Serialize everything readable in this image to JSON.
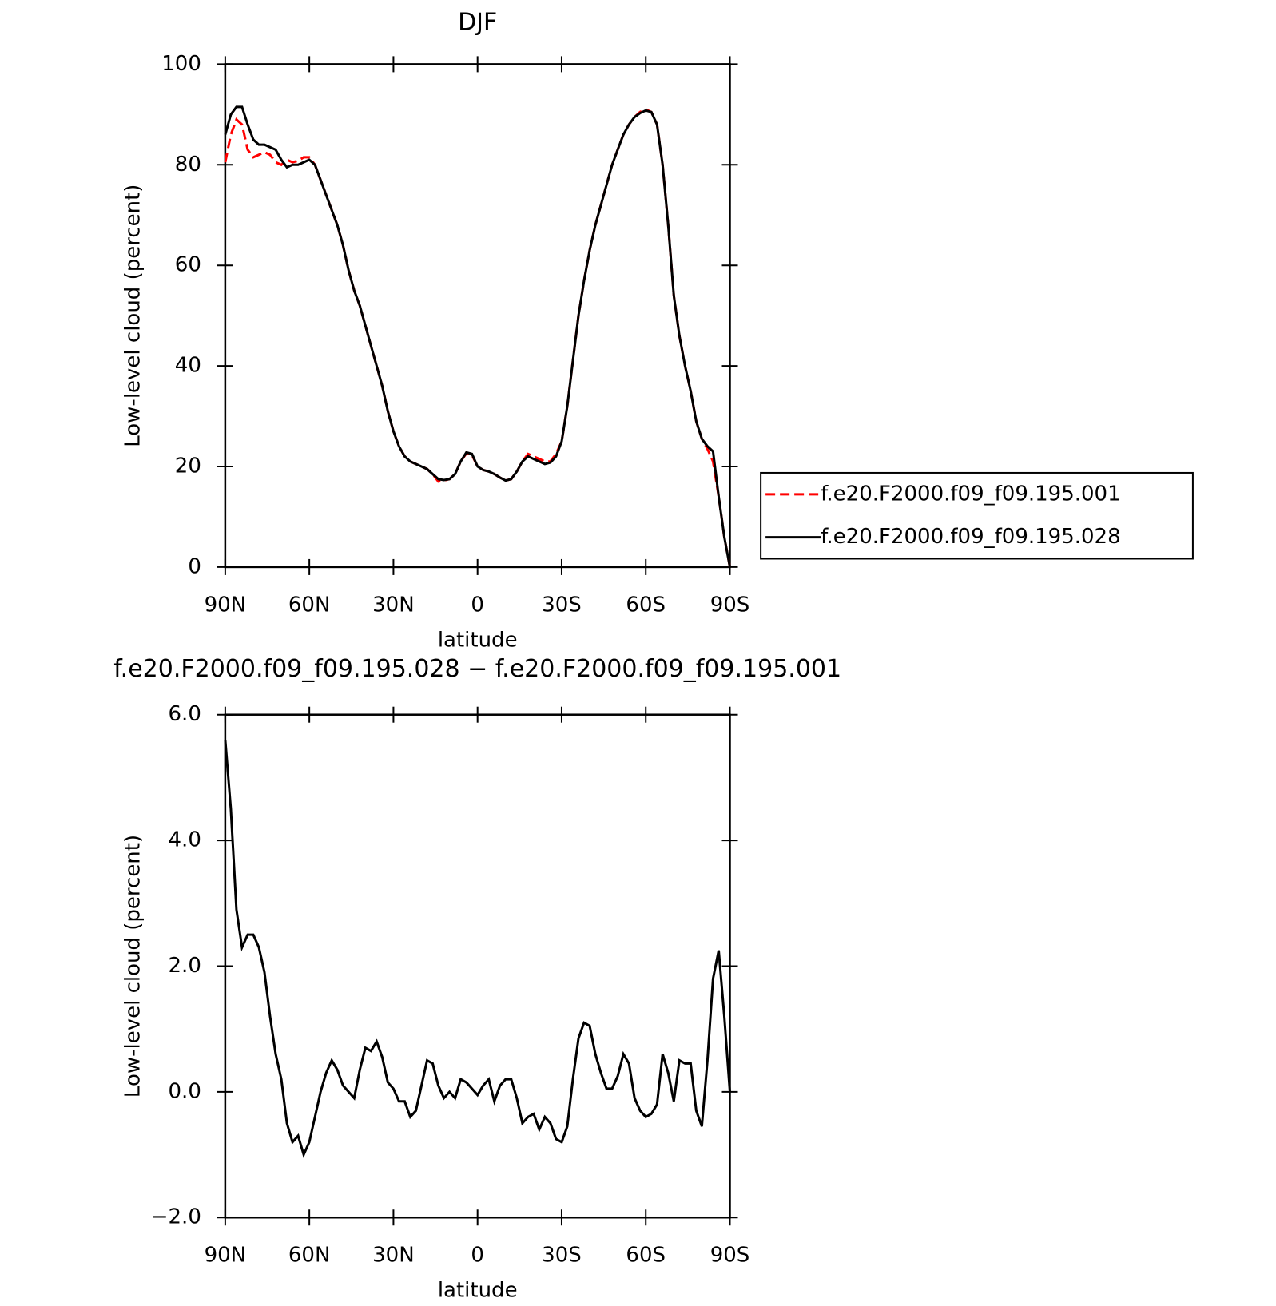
{
  "chart_data": [
    {
      "type": "line",
      "title": "DJF",
      "x_label": "latitude",
      "y_label": "Low-level cloud (percent)",
      "x": [
        90,
        88,
        86,
        84,
        82,
        80,
        78,
        76,
        74,
        72,
        70,
        68,
        66,
        64,
        62,
        60,
        58,
        56,
        54,
        52,
        50,
        48,
        46,
        44,
        42,
        40,
        38,
        36,
        34,
        32,
        30,
        28,
        26,
        24,
        22,
        20,
        18,
        16,
        14,
        12,
        10,
        8,
        6,
        4,
        2,
        0,
        -2,
        -4,
        -6,
        -8,
        -10,
        -12,
        -14,
        -16,
        -18,
        -20,
        -22,
        -24,
        -26,
        -28,
        -30,
        -32,
        -34,
        -36,
        -38,
        -40,
        -42,
        -44,
        -46,
        -48,
        -50,
        -52,
        -54,
        -56,
        -58,
        -60,
        -62,
        -64,
        -66,
        -68,
        -70,
        -72,
        -74,
        -76,
        -78,
        -80,
        -82,
        -84,
        -86,
        -88,
        -90
      ],
      "series": [
        {
          "name": "f.e20.F2000.f09_f09.195.001",
          "color": "#ff0000",
          "linestyle": "dashed",
          "values": [
            80.5,
            86,
            89,
            88,
            83,
            81.5,
            82,
            82.5,
            82,
            80.5,
            80,
            81,
            80.5,
            80.8,
            81.5,
            81.5,
            80,
            77,
            74,
            71,
            68,
            64,
            59,
            55,
            52,
            48,
            44,
            40,
            36,
            31,
            27,
            24,
            22,
            21,
            20.5,
            20,
            19.5,
            18.5,
            17,
            17.2,
            17.5,
            18.5,
            21,
            22.6,
            22.3,
            20,
            19.3,
            19,
            18.5,
            17.8,
            17.2,
            17.5,
            19,
            21,
            22.5,
            22,
            21.5,
            21,
            21,
            22.5,
            25,
            32,
            41,
            50,
            57,
            63,
            68,
            72,
            76,
            80,
            83,
            86,
            88,
            89.5,
            90.5,
            91,
            90.5,
            88,
            80,
            68,
            54,
            46,
            40,
            35,
            29,
            25.5,
            23.5,
            21,
            14,
            6,
            0
          ]
        },
        {
          "name": "f.e20.F2000.f09_f09.195.028",
          "color": "#000000",
          "linestyle": "solid",
          "values": [
            86,
            90,
            91.5,
            91.5,
            88,
            85,
            84,
            84,
            83.5,
            83,
            81,
            79.5,
            80,
            80,
            80.5,
            81,
            80,
            77,
            74,
            71,
            68,
            64,
            59,
            55,
            52,
            48,
            44,
            40,
            36,
            31,
            27,
            24,
            22,
            21,
            20.5,
            20,
            19.5,
            18.5,
            17.5,
            17.3,
            17.5,
            18.5,
            21,
            22.8,
            22.5,
            20,
            19.3,
            19,
            18.5,
            17.8,
            17.2,
            17.5,
            19,
            21,
            22,
            21.5,
            21,
            20.5,
            20.8,
            22,
            25,
            32,
            41,
            50,
            57,
            63,
            68,
            72,
            76,
            80,
            83,
            86,
            88,
            89.5,
            90.3,
            90.8,
            90.5,
            88,
            80,
            68,
            54,
            46,
            40,
            35,
            29,
            25.5,
            24,
            23,
            14,
            6,
            0
          ]
        }
      ],
      "xlim": [
        90,
        -90
      ],
      "xticks": [
        {
          "value": 90,
          "label": "90N"
        },
        {
          "value": 60,
          "label": "60N"
        },
        {
          "value": 30,
          "label": "30N"
        },
        0,
        {
          "value": -30,
          "label": "30S"
        },
        {
          "value": -60,
          "label": "60S"
        },
        {
          "value": -90,
          "label": "90S"
        }
      ],
      "ylim": [
        0,
        100
      ],
      "yticks": [
        0,
        20,
        40,
        60,
        80,
        100
      ],
      "legend": "right"
    },
    {
      "type": "line",
      "title": "f.e20.F2000.f09_f09.195.028 − f.e20.F2000.f09_f09.195.001",
      "x_label": "latitude",
      "y_label": "Low-level cloud (percent)",
      "x": [
        90,
        88,
        86,
        84,
        82,
        80,
        78,
        76,
        74,
        72,
        70,
        68,
        66,
        64,
        62,
        60,
        58,
        56,
        54,
        52,
        50,
        48,
        46,
        44,
        42,
        40,
        38,
        36,
        34,
        32,
        30,
        28,
        26,
        24,
        22,
        20,
        18,
        16,
        14,
        12,
        10,
        8,
        6,
        4,
        2,
        0,
        -2,
        -4,
        -6,
        -8,
        -10,
        -12,
        -14,
        -16,
        -18,
        -20,
        -22,
        -24,
        -26,
        -28,
        -30,
        -32,
        -34,
        -36,
        -38,
        -40,
        -42,
        -44,
        -46,
        -48,
        -50,
        -52,
        -54,
        -56,
        -58,
        -60,
        -62,
        -64,
        -66,
        -68,
        -70,
        -72,
        -74,
        -76,
        -78,
        -80,
        -82,
        -84,
        -86,
        -88,
        -90
      ],
      "series": [
        {
          "color": "#000000",
          "linestyle": "solid",
          "values": [
            5.6,
            4.5,
            2.9,
            2.3,
            2.5,
            2.5,
            2.3,
            1.9,
            1.2,
            0.6,
            0.2,
            -0.5,
            -0.8,
            -0.7,
            -1.0,
            -0.8,
            -0.4,
            0.0,
            0.3,
            0.5,
            0.35,
            0.1,
            0.0,
            -0.1,
            0.35,
            0.7,
            0.65,
            0.8,
            0.55,
            0.15,
            0.05,
            -0.15,
            -0.15,
            -0.4,
            -0.3,
            0.1,
            0.5,
            0.45,
            0.1,
            -0.1,
            0.0,
            -0.1,
            0.2,
            0.15,
            0.05,
            -0.05,
            0.1,
            0.2,
            -0.15,
            0.1,
            0.2,
            0.2,
            -0.1,
            -0.5,
            -0.4,
            -0.35,
            -0.6,
            -0.4,
            -0.5,
            -0.75,
            -0.8,
            -0.55,
            0.2,
            0.85,
            1.1,
            1.05,
            0.6,
            0.3,
            0.05,
            0.05,
            0.25,
            0.6,
            0.45,
            -0.1,
            -0.3,
            -0.4,
            -0.35,
            -0.2,
            0.6,
            0.3,
            -0.15,
            0.5,
            0.45,
            0.45,
            -0.3,
            -0.55,
            0.5,
            1.8,
            2.25,
            1.2,
            0.0
          ]
        }
      ],
      "xlim": [
        90,
        -90
      ],
      "xticks": [
        {
          "value": 90,
          "label": "90N"
        },
        {
          "value": 60,
          "label": "60N"
        },
        {
          "value": 30,
          "label": "30N"
        },
        0,
        {
          "value": -30,
          "label": "30S"
        },
        {
          "value": -60,
          "label": "60S"
        },
        {
          "value": -90,
          "label": "90S"
        }
      ],
      "ylim": [
        -2,
        6
      ],
      "yticks": [
        {
          "value": -2,
          "label": "−2.0"
        },
        {
          "value": 0,
          "label": "0.0"
        },
        {
          "value": 2,
          "label": "2.0"
        },
        {
          "value": 4,
          "label": "4.0"
        },
        {
          "value": 6,
          "label": "6.0"
        }
      ]
    }
  ]
}
